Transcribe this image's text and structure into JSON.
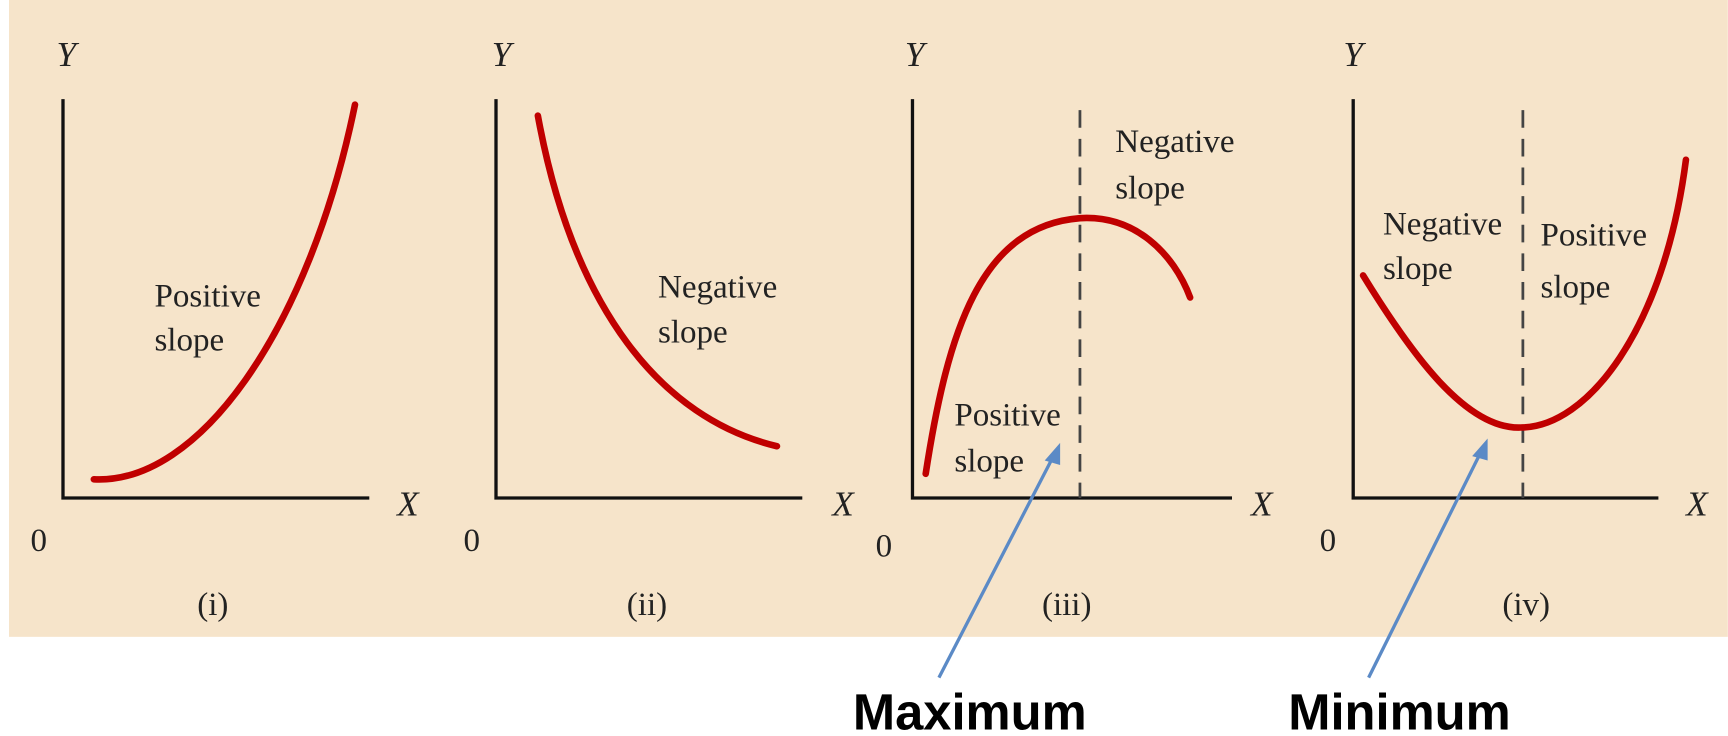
{
  "panels": [
    {
      "y_label": "Y",
      "x_label": "X",
      "origin": "0",
      "caption": "(i)",
      "labels": [
        {
          "lines": [
            "Positive",
            "slope"
          ]
        }
      ]
    },
    {
      "y_label": "Y",
      "x_label": "X",
      "origin": "0",
      "caption": "(ii)",
      "labels": [
        {
          "lines": [
            "Negative",
            "slope"
          ]
        }
      ]
    },
    {
      "y_label": "Y",
      "x_label": "X",
      "origin": "0",
      "caption": "(iii)",
      "labels": [
        {
          "lines": [
            "Negative",
            "slope"
          ]
        },
        {
          "lines": [
            "Positive",
            "slope"
          ]
        }
      ]
    },
    {
      "y_label": "Y",
      "x_label": "X",
      "origin": "0",
      "caption": "(iv)",
      "labels": [
        {
          "lines": [
            "Negative",
            "slope"
          ]
        },
        {
          "lines": [
            "Positive",
            "slope"
          ]
        }
      ]
    }
  ],
  "annotations": [
    "Maximum",
    "Minimum"
  ]
}
